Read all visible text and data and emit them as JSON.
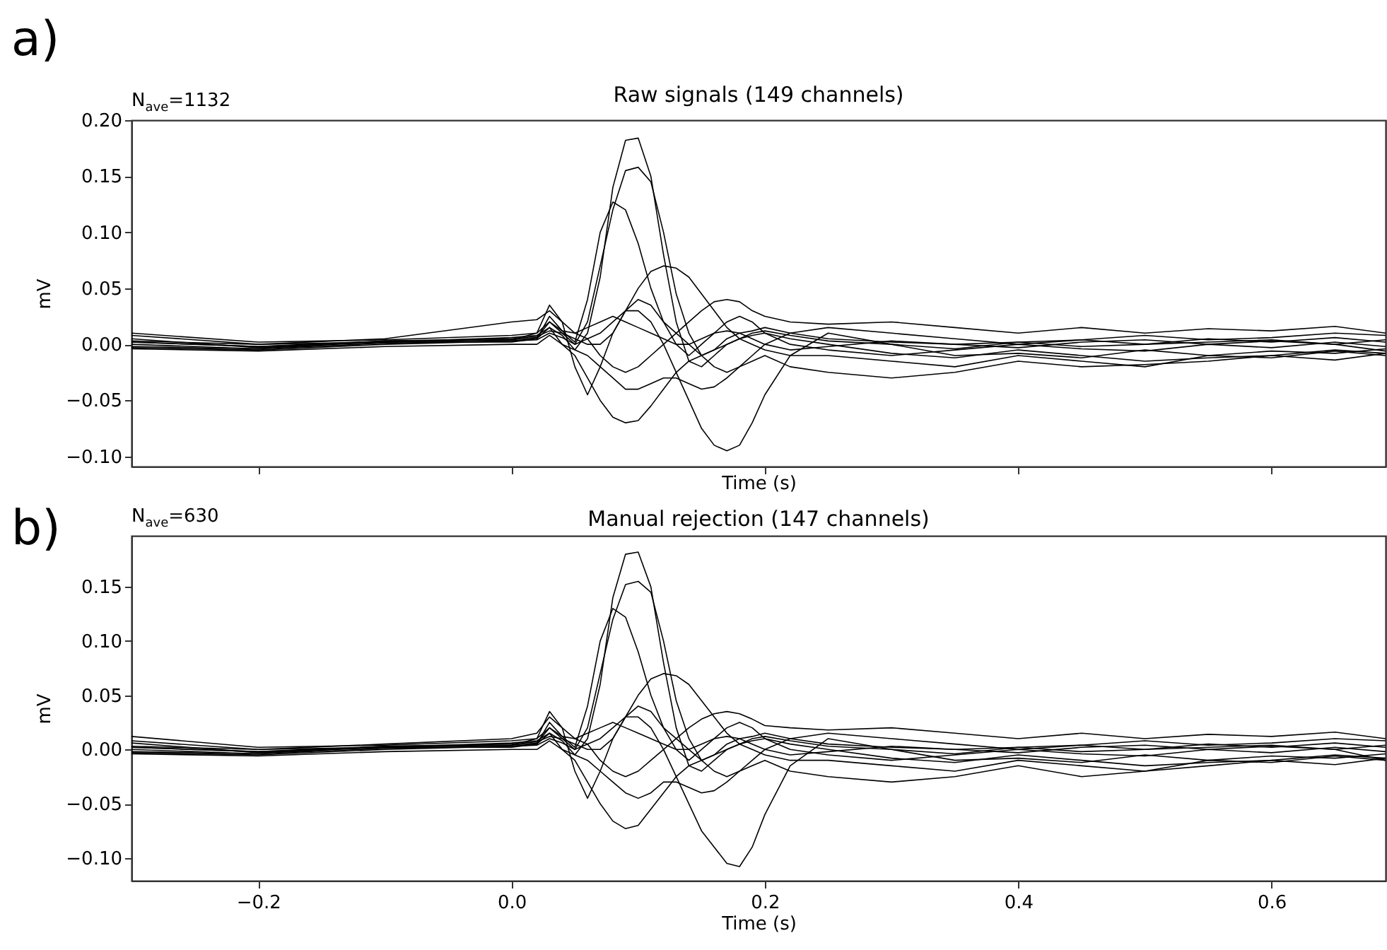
{
  "chart_data": [
    {
      "type": "line",
      "title": "Raw signals (149 channels)",
      "xlabel": "Time (s)",
      "ylabel": "mV",
      "annotations": [
        "a)",
        "N$_{ave}$=1132"
      ],
      "x": [
        -0.3,
        -0.2,
        -0.1,
        0,
        0.02,
        0.03,
        0.04,
        0.05,
        0.06,
        0.07,
        0.08,
        0.09,
        0.1,
        0.11,
        0.12,
        0.13,
        0.14,
        0.15,
        0.16,
        0.17,
        0.18,
        0.19,
        0.2,
        0.22,
        0.25,
        0.3,
        0.35,
        0.4,
        0.45,
        0.5,
        0.55,
        0.6,
        0.65,
        0.69
      ],
      "series": [
        {
          "color": "#000000",
          "values": [
            0.005,
            -0.003,
            0.002,
            0.006,
            0.008,
            0.015,
            0.008,
            -0.005,
            0.01,
            0.06,
            0.14,
            0.182,
            0.184,
            0.15,
            0.08,
            0.02,
            -0.015,
            -0.02,
            -0.01,
            0.0,
            0.005,
            0.01,
            0.012,
            0.008,
            0.003,
            0.0,
            -0.004,
            0.002,
            0.004,
            0.0,
            0.005,
            0.002,
            0.006,
            0.002
          ]
        },
        {
          "color": "#000000",
          "values": [
            0.002,
            -0.002,
            0.003,
            0.004,
            0.006,
            0.02,
            0.01,
            0.0,
            0.02,
            0.07,
            0.12,
            0.155,
            0.158,
            0.145,
            0.1,
            0.045,
            0.01,
            -0.01,
            -0.005,
            0.005,
            0.01,
            0.012,
            0.015,
            0.01,
            0.005,
            0.002,
            0.0,
            -0.003,
            0.002,
            0.004,
            0.0,
            0.003,
            0.0,
            0.004
          ]
        },
        {
          "color": "#000000",
          "values": [
            0.0,
            -0.004,
            0.001,
            0.003,
            0.005,
            0.025,
            0.012,
            0.002,
            0.04,
            0.1,
            0.127,
            0.12,
            0.09,
            0.05,
            0.02,
            0.0,
            -0.01,
            0.0,
            0.01,
            0.02,
            0.025,
            0.02,
            0.01,
            0.0,
            -0.005,
            -0.01,
            -0.005,
            0.0,
            -0.004,
            -0.006,
            0.0,
            -0.003,
            0.002,
            -0.002
          ]
        },
        {
          "color": "#000000",
          "values": [
            -0.003,
            -0.005,
            0.0,
            0.003,
            0.004,
            0.01,
            0.006,
            0.0,
            0.005,
            0.01,
            0.02,
            0.03,
            0.03,
            0.02,
            0.0,
            -0.025,
            -0.05,
            -0.075,
            -0.09,
            -0.095,
            -0.09,
            -0.07,
            -0.045,
            -0.01,
            0.01,
            0.0,
            -0.01,
            -0.008,
            -0.012,
            -0.005,
            -0.01,
            -0.006,
            -0.008,
            -0.004
          ]
        },
        {
          "color": "#000000",
          "values": [
            0.002,
            -0.002,
            0.002,
            0.002,
            0.005,
            0.015,
            0.0,
            -0.01,
            -0.03,
            -0.05,
            -0.065,
            -0.07,
            -0.068,
            -0.055,
            -0.04,
            -0.025,
            -0.015,
            -0.01,
            -0.005,
            0.0,
            0.005,
            0.008,
            0.01,
            0.005,
            0.0,
            -0.008,
            -0.012,
            -0.005,
            -0.01,
            -0.015,
            -0.012,
            -0.01,
            -0.005,
            -0.008
          ]
        },
        {
          "color": "#000000",
          "values": [
            0.008,
            0.0,
            0.002,
            0.004,
            0.01,
            0.035,
            0.02,
            -0.02,
            -0.045,
            -0.02,
            0.01,
            0.03,
            0.04,
            0.035,
            0.02,
            0.01,
            0.0,
            -0.01,
            -0.02,
            -0.025,
            -0.02,
            -0.01,
            0.0,
            0.01,
            0.015,
            0.01,
            0.005,
            0.0,
            0.004,
            0.008,
            0.004,
            0.006,
            0.01,
            0.008
          ]
        },
        {
          "color": "#000000",
          "values": [
            -0.002,
            -0.004,
            0.003,
            0.005,
            0.007,
            0.012,
            0.01,
            0.005,
            0.0,
            0.0,
            0.01,
            0.03,
            0.05,
            0.065,
            0.07,
            0.068,
            0.06,
            0.045,
            0.03,
            0.015,
            0.005,
            0.0,
            -0.005,
            -0.01,
            -0.01,
            -0.015,
            -0.02,
            -0.01,
            -0.015,
            -0.02,
            -0.01,
            -0.012,
            -0.006,
            -0.01
          ]
        },
        {
          "color": "#000000",
          "values": [
            0.003,
            0.0,
            0.005,
            0.02,
            0.022,
            0.03,
            0.02,
            0.01,
            0.005,
            -0.01,
            -0.02,
            -0.025,
            -0.02,
            -0.01,
            0.0,
            0.01,
            0.02,
            0.03,
            0.038,
            0.04,
            0.038,
            0.03,
            0.025,
            0.02,
            0.018,
            0.02,
            0.015,
            0.01,
            0.015,
            0.01,
            0.014,
            0.012,
            0.016,
            0.01
          ]
        },
        {
          "color": "#000000",
          "values": [
            -0.004,
            -0.006,
            -0.002,
            0.0,
            0.0,
            0.008,
            0.0,
            -0.005,
            -0.01,
            -0.02,
            -0.03,
            -0.04,
            -0.04,
            -0.035,
            -0.03,
            -0.03,
            -0.035,
            -0.04,
            -0.038,
            -0.03,
            -0.02,
            -0.015,
            -0.01,
            -0.02,
            -0.025,
            -0.03,
            -0.025,
            -0.015,
            -0.02,
            -0.018,
            -0.015,
            -0.01,
            -0.014,
            -0.008
          ]
        },
        {
          "color": "#000000",
          "values": [
            0.01,
            0.002,
            0.004,
            0.008,
            0.01,
            0.02,
            0.012,
            0.01,
            0.015,
            0.02,
            0.025,
            0.02,
            0.015,
            0.01,
            0.005,
            0.0,
            0.0,
            0.005,
            0.01,
            0.012,
            0.01,
            0.005,
            0.0,
            -0.005,
            -0.002,
            0.003,
            0.0,
            0.002,
            -0.002,
            0.0,
            0.002,
            0.004,
            0.0,
            -0.006
          ]
        }
      ],
      "xlim": [
        -0.3,
        0.69
      ],
      "ylim": [
        -0.109,
        0.2
      ],
      "xticks": [
        {
          "value": -0.2,
          "label": null
        },
        {
          "value": 0,
          "label": null
        },
        {
          "value": 0.2,
          "label": null
        },
        {
          "value": 0.4,
          "label": null
        },
        {
          "value": 0.6,
          "label": null
        }
      ],
      "yticks": [
        {
          "value": -0.1,
          "label": "−0.10"
        },
        {
          "value": -0.05,
          "label": "−0.05"
        },
        {
          "value": 0,
          "label": "0.00"
        },
        {
          "value": 0.05,
          "label": "0.05"
        },
        {
          "value": 0.1,
          "label": "0.10"
        },
        {
          "value": 0.15,
          "label": "0.15"
        },
        {
          "value": 0.2,
          "label": "0.20"
        }
      ],
      "tick_labels": "y"
    },
    {
      "type": "line",
      "title": "Manual rejection (147 channels)",
      "xlabel": "Time (s)",
      "ylabel": "mV",
      "annotations": [
        "b)",
        "N$_{ave}$=630"
      ],
      "x": [
        -0.3,
        -0.2,
        -0.1,
        0,
        0.02,
        0.03,
        0.04,
        0.05,
        0.06,
        0.07,
        0.08,
        0.09,
        0.1,
        0.11,
        0.12,
        0.13,
        0.14,
        0.15,
        0.16,
        0.17,
        0.18,
        0.19,
        0.2,
        0.22,
        0.25,
        0.3,
        0.35,
        0.4,
        0.45,
        0.5,
        0.55,
        0.6,
        0.65,
        0.69
      ],
      "series": [
        {
          "color": "#000000",
          "values": [
            0.006,
            -0.003,
            0.002,
            0.006,
            0.008,
            0.015,
            0.008,
            -0.005,
            0.01,
            0.06,
            0.14,
            0.18,
            0.182,
            0.15,
            0.08,
            0.02,
            -0.015,
            -0.02,
            -0.01,
            0.0,
            0.005,
            0.01,
            0.012,
            0.008,
            0.003,
            0.0,
            -0.004,
            0.002,
            0.004,
            0.0,
            0.005,
            0.002,
            0.006,
            0.002
          ]
        },
        {
          "color": "#000000",
          "values": [
            0.002,
            -0.002,
            0.003,
            0.004,
            0.006,
            0.02,
            0.01,
            0.0,
            0.02,
            0.07,
            0.12,
            0.152,
            0.155,
            0.145,
            0.1,
            0.045,
            0.01,
            -0.01,
            -0.005,
            0.005,
            0.01,
            0.012,
            0.015,
            0.01,
            0.005,
            0.002,
            0.0,
            -0.003,
            0.002,
            0.004,
            0.0,
            0.003,
            0.0,
            0.004
          ]
        },
        {
          "color": "#000000",
          "values": [
            0.0,
            -0.004,
            0.001,
            0.003,
            0.005,
            0.025,
            0.012,
            0.002,
            0.04,
            0.1,
            0.13,
            0.122,
            0.09,
            0.05,
            0.02,
            0.0,
            -0.01,
            0.0,
            0.01,
            0.02,
            0.025,
            0.02,
            0.01,
            0.0,
            -0.005,
            -0.01,
            -0.005,
            0.0,
            -0.004,
            -0.006,
            0.0,
            -0.003,
            0.002,
            -0.002
          ]
        },
        {
          "color": "#000000",
          "values": [
            -0.003,
            -0.005,
            0.0,
            0.003,
            0.004,
            0.01,
            0.006,
            0.0,
            0.005,
            0.01,
            0.02,
            0.03,
            0.03,
            0.02,
            0.0,
            -0.025,
            -0.05,
            -0.075,
            -0.09,
            -0.105,
            -0.108,
            -0.09,
            -0.06,
            -0.015,
            0.01,
            0.0,
            -0.01,
            -0.008,
            -0.012,
            -0.005,
            -0.01,
            -0.006,
            -0.008,
            -0.004
          ]
        },
        {
          "color": "#000000",
          "values": [
            0.002,
            -0.002,
            0.002,
            0.002,
            0.005,
            0.015,
            0.0,
            -0.01,
            -0.03,
            -0.05,
            -0.066,
            -0.073,
            -0.07,
            -0.055,
            -0.04,
            -0.025,
            -0.015,
            -0.01,
            -0.005,
            0.0,
            0.005,
            0.008,
            0.01,
            0.005,
            0.0,
            -0.008,
            -0.012,
            -0.005,
            -0.01,
            -0.015,
            -0.012,
            -0.01,
            -0.005,
            -0.008
          ]
        },
        {
          "color": "#000000",
          "values": [
            0.008,
            0.0,
            0.002,
            0.004,
            0.01,
            0.035,
            0.02,
            -0.02,
            -0.045,
            -0.02,
            0.01,
            0.03,
            0.04,
            0.035,
            0.02,
            0.01,
            0.0,
            -0.01,
            -0.02,
            -0.025,
            -0.02,
            -0.01,
            0.0,
            0.01,
            0.015,
            0.01,
            0.005,
            0.0,
            0.004,
            0.008,
            0.004,
            0.006,
            0.01,
            0.008
          ]
        },
        {
          "color": "#000000",
          "values": [
            -0.002,
            -0.004,
            0.003,
            0.005,
            0.007,
            0.012,
            0.01,
            0.005,
            0.0,
            0.0,
            0.01,
            0.03,
            0.05,
            0.065,
            0.07,
            0.068,
            0.06,
            0.045,
            0.03,
            0.015,
            0.005,
            0.0,
            -0.005,
            -0.01,
            -0.01,
            -0.015,
            -0.02,
            -0.01,
            -0.015,
            -0.02,
            -0.01,
            -0.012,
            -0.006,
            -0.01
          ]
        },
        {
          "color": "#000000",
          "values": [
            0.003,
            0.0,
            0.005,
            0.01,
            0.015,
            0.03,
            0.02,
            0.01,
            0.005,
            -0.01,
            -0.02,
            -0.025,
            -0.02,
            -0.01,
            0.0,
            0.01,
            0.02,
            0.028,
            0.033,
            0.035,
            0.033,
            0.028,
            0.022,
            0.02,
            0.018,
            0.02,
            0.015,
            0.01,
            0.015,
            0.01,
            0.014,
            0.012,
            0.016,
            0.01
          ]
        },
        {
          "color": "#000000",
          "values": [
            -0.004,
            -0.006,
            -0.002,
            0.0,
            0.0,
            0.008,
            0.0,
            -0.005,
            -0.01,
            -0.02,
            -0.03,
            -0.04,
            -0.045,
            -0.04,
            -0.03,
            -0.03,
            -0.035,
            -0.04,
            -0.038,
            -0.03,
            -0.02,
            -0.015,
            -0.01,
            -0.02,
            -0.025,
            -0.03,
            -0.025,
            -0.015,
            -0.025,
            -0.02,
            -0.015,
            -0.01,
            -0.014,
            -0.008
          ]
        },
        {
          "color": "#000000",
          "values": [
            0.012,
            0.002,
            0.004,
            0.008,
            0.01,
            0.02,
            0.012,
            0.01,
            0.015,
            0.02,
            0.025,
            0.02,
            0.015,
            0.01,
            0.005,
            0.0,
            0.0,
            0.005,
            0.01,
            0.012,
            0.01,
            0.005,
            0.0,
            -0.005,
            -0.002,
            0.003,
            0.0,
            0.002,
            -0.002,
            0.0,
            0.002,
            0.004,
            0.0,
            -0.01
          ]
        }
      ],
      "xlim": [
        -0.3,
        0.69
      ],
      "ylim": [
        -0.121,
        0.197
      ],
      "xticks": [
        {
          "value": -0.2,
          "label": "−0.2"
        },
        {
          "value": 0,
          "label": "0.0"
        },
        {
          "value": 0.2,
          "label": "0.2"
        },
        {
          "value": 0.4,
          "label": "0.4"
        },
        {
          "value": 0.6,
          "label": "0.6"
        }
      ],
      "yticks": [
        {
          "value": -0.1,
          "label": "−0.10"
        },
        {
          "value": -0.05,
          "label": "−0.05"
        },
        {
          "value": 0,
          "label": "0.00"
        },
        {
          "value": 0.05,
          "label": "0.05"
        },
        {
          "value": 0.1,
          "label": "0.10"
        },
        {
          "value": 0.15,
          "label": "0.15"
        }
      ]
    }
  ]
}
